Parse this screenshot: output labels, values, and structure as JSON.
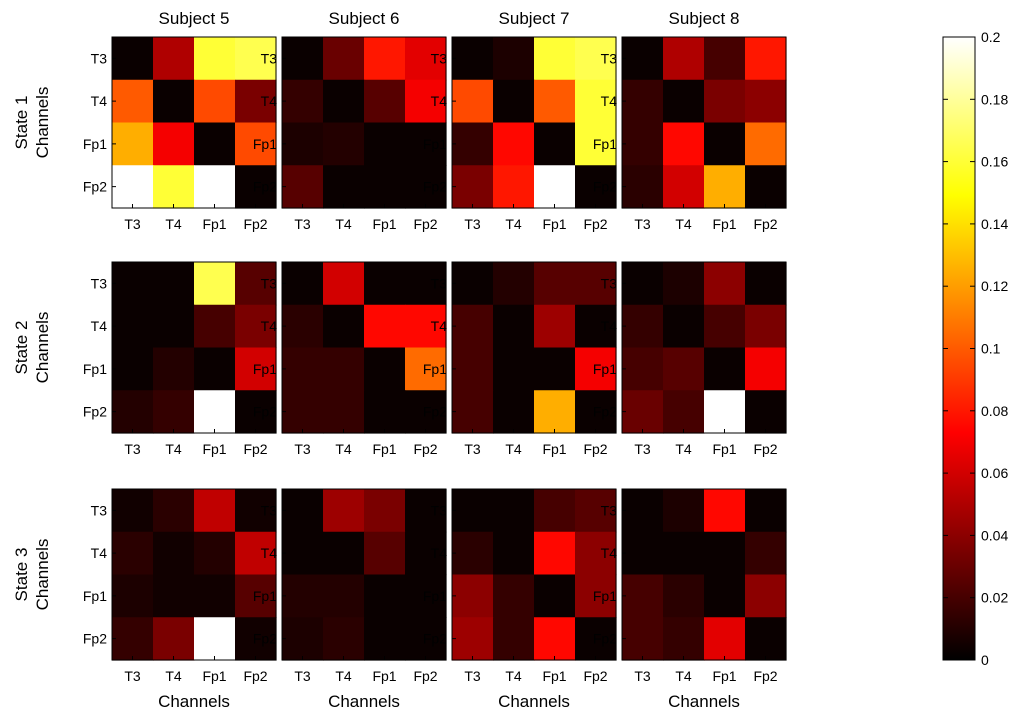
{
  "chart_data": {
    "type": "heatmap",
    "colormap": "hot",
    "colorbar": {
      "min": 0,
      "max": 0.2,
      "ticks": [
        0,
        0.02,
        0.04,
        0.06,
        0.08,
        0.1,
        0.12,
        0.14,
        0.16,
        0.18,
        0.2
      ]
    },
    "channels": [
      "T3",
      "T4",
      "Fp1",
      "Fp2"
    ],
    "xlabel": "Channels",
    "ylabel": "Channels",
    "subjects": [
      "Subject 5",
      "Subject 6",
      "Subject 7",
      "Subject 8"
    ],
    "states": [
      "State 1",
      "State 2",
      "State 3"
    ],
    "matrices": [
      [
        [
          [
            0.003,
            0.05,
            0.16,
            0.165
          ],
          [
            0.1,
            0.003,
            0.095,
            0.035
          ],
          [
            0.125,
            0.07,
            0.003,
            0.095
          ],
          [
            0.2,
            0.16,
            0.2,
            0.003
          ]
        ],
        [
          [
            0.003,
            0.03,
            0.08,
            0.065
          ],
          [
            0.015,
            0.003,
            0.025,
            0.07
          ],
          [
            0.008,
            0.01,
            0.003,
            0.003
          ],
          [
            0.025,
            0.003,
            0.003,
            0.003
          ]
        ],
        [
          [
            0.003,
            0.008,
            0.16,
            0.165
          ],
          [
            0.095,
            0.003,
            0.1,
            0.16
          ],
          [
            0.015,
            0.075,
            0.003,
            0.16
          ],
          [
            0.035,
            0.08,
            0.2,
            0.003
          ]
        ],
        [
          [
            0.003,
            0.05,
            0.02,
            0.08
          ],
          [
            0.015,
            0.003,
            0.035,
            0.04
          ],
          [
            0.015,
            0.075,
            0.003,
            0.105
          ],
          [
            0.012,
            0.06,
            0.125,
            0.003
          ]
        ]
      ],
      [
        [
          [
            0.003,
            0.003,
            0.165,
            0.025
          ],
          [
            0.003,
            0.003,
            0.02,
            0.035
          ],
          [
            0.003,
            0.01,
            0.003,
            0.06
          ],
          [
            0.01,
            0.015,
            0.2,
            0.003
          ]
        ],
        [
          [
            0.003,
            0.06,
            0.003,
            0.003
          ],
          [
            0.012,
            0.003,
            0.075,
            0.075
          ],
          [
            0.015,
            0.015,
            0.003,
            0.105
          ],
          [
            0.015,
            0.015,
            0.003,
            0.003
          ]
        ],
        [
          [
            0.003,
            0.01,
            0.025,
            0.025
          ],
          [
            0.02,
            0.003,
            0.045,
            0.003
          ],
          [
            0.02,
            0.003,
            0.003,
            0.07
          ],
          [
            0.02,
            0.003,
            0.125,
            0.003
          ]
        ],
        [
          [
            0.003,
            0.008,
            0.04,
            0.003
          ],
          [
            0.015,
            0.003,
            0.02,
            0.035
          ],
          [
            0.02,
            0.025,
            0.003,
            0.07
          ],
          [
            0.03,
            0.02,
            0.2,
            0.003
          ]
        ]
      ],
      [
        [
          [
            0.005,
            0.012,
            0.055,
            0.005
          ],
          [
            0.012,
            0.005,
            0.01,
            0.055
          ],
          [
            0.008,
            0.005,
            0.005,
            0.025
          ],
          [
            0.015,
            0.035,
            0.2,
            0.005
          ]
        ],
        [
          [
            0.003,
            0.045,
            0.035,
            0.003
          ],
          [
            0.003,
            0.003,
            0.025,
            0.003
          ],
          [
            0.01,
            0.01,
            0.003,
            0.003
          ],
          [
            0.008,
            0.012,
            0.003,
            0.003
          ]
        ],
        [
          [
            0.003,
            0.003,
            0.02,
            0.025
          ],
          [
            0.012,
            0.003,
            0.075,
            0.04
          ],
          [
            0.04,
            0.015,
            0.003,
            0.04
          ],
          [
            0.045,
            0.015,
            0.075,
            0.003
          ]
        ],
        [
          [
            0.003,
            0.008,
            0.075,
            0.003
          ],
          [
            0.003,
            0.003,
            0.003,
            0.015
          ],
          [
            0.02,
            0.012,
            0.003,
            0.04
          ],
          [
            0.02,
            0.015,
            0.065,
            0.003
          ]
        ]
      ]
    ]
  }
}
